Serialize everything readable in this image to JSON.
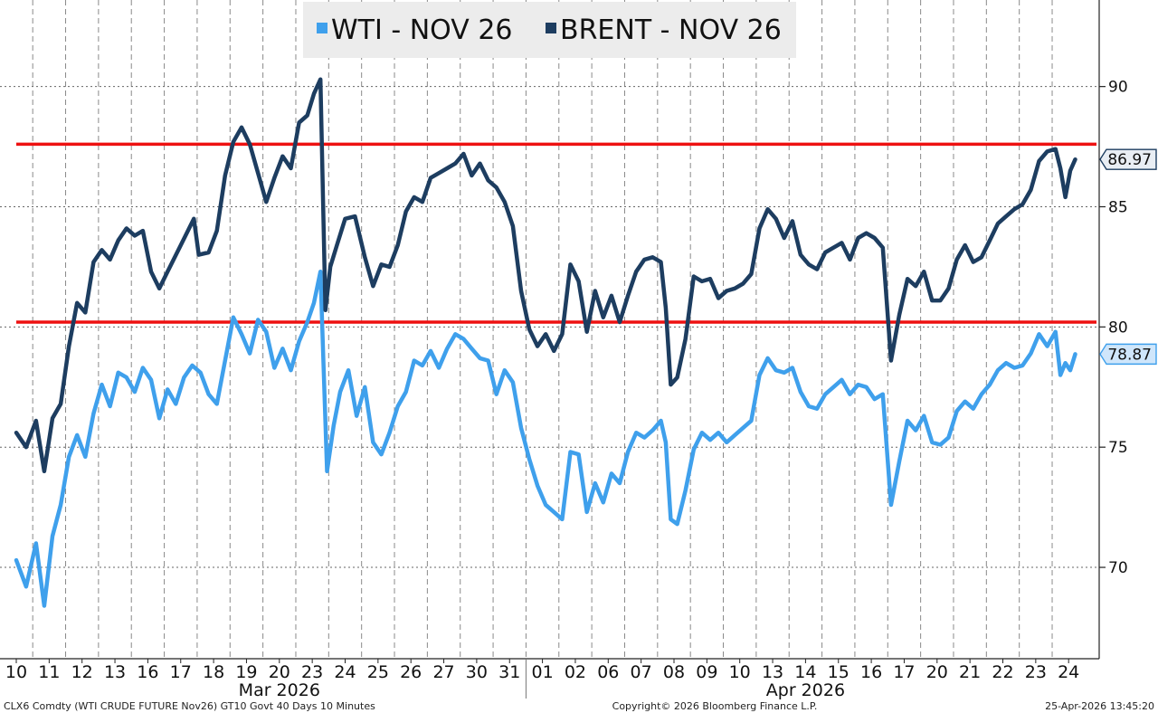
{
  "chart_data": {
    "type": "line",
    "title": "",
    "y_axis": {
      "position": "right",
      "ticks": [
        70,
        75,
        80,
        85,
        90
      ],
      "ylim": [
        66.2,
        93.6
      ]
    },
    "x_axis": {
      "day_labels": [
        "10",
        "11",
        "12",
        "13",
        "16",
        "17",
        "18",
        "19",
        "20",
        "23",
        "24",
        "25",
        "26",
        "27",
        "30",
        "31",
        "01",
        "02",
        "06",
        "07",
        "08",
        "09",
        "10",
        "13",
        "14",
        "15",
        "16",
        "17",
        "20",
        "21",
        "22",
        "23",
        "24"
      ],
      "month_labels": [
        {
          "label": "Mar 2026",
          "center_day_index": 8
        },
        {
          "label": "Apr 2026",
          "center_day_index": 24
        }
      ],
      "month_separator_after_index": 15
    },
    "legend": {
      "placement": "top-center",
      "items": [
        {
          "label": "WTI - NOV 26",
          "color": "#3fa0ec"
        },
        {
          "label": "BRENT - NOV 26",
          "color": "#1d3d60"
        }
      ]
    },
    "series": [
      {
        "name": "WTI - NOV 26",
        "color": "#3fa0ec",
        "last_value_label": "78.87",
        "points": [
          [
            0.0,
            70.3
          ],
          [
            0.3,
            69.2
          ],
          [
            0.6,
            71.0
          ],
          [
            0.85,
            68.4
          ],
          [
            1.1,
            71.3
          ],
          [
            1.35,
            72.6
          ],
          [
            1.6,
            74.6
          ],
          [
            1.85,
            75.5
          ],
          [
            2.1,
            74.6
          ],
          [
            2.35,
            76.4
          ],
          [
            2.6,
            77.6
          ],
          [
            2.85,
            76.7
          ],
          [
            3.1,
            78.1
          ],
          [
            3.35,
            77.9
          ],
          [
            3.6,
            77.3
          ],
          [
            3.85,
            78.3
          ],
          [
            4.1,
            77.8
          ],
          [
            4.35,
            76.2
          ],
          [
            4.6,
            77.4
          ],
          [
            4.85,
            76.8
          ],
          [
            5.1,
            77.9
          ],
          [
            5.35,
            78.4
          ],
          [
            5.6,
            78.1
          ],
          [
            5.85,
            77.2
          ],
          [
            6.1,
            76.8
          ],
          [
            6.35,
            78.6
          ],
          [
            6.6,
            80.4
          ],
          [
            6.85,
            79.7
          ],
          [
            7.1,
            78.9
          ],
          [
            7.35,
            80.3
          ],
          [
            7.6,
            79.8
          ],
          [
            7.85,
            78.3
          ],
          [
            8.1,
            79.1
          ],
          [
            8.35,
            78.2
          ],
          [
            8.6,
            79.4
          ],
          [
            8.85,
            80.2
          ],
          [
            9.05,
            81.0
          ],
          [
            9.25,
            82.3
          ],
          [
            9.45,
            74.0
          ],
          [
            9.65,
            75.9
          ],
          [
            9.85,
            77.3
          ],
          [
            10.1,
            78.2
          ],
          [
            10.35,
            76.3
          ],
          [
            10.6,
            77.5
          ],
          [
            10.85,
            75.2
          ],
          [
            11.1,
            74.7
          ],
          [
            11.35,
            75.6
          ],
          [
            11.6,
            76.7
          ],
          [
            11.85,
            77.3
          ],
          [
            12.1,
            78.6
          ],
          [
            12.35,
            78.4
          ],
          [
            12.6,
            79.0
          ],
          [
            12.85,
            78.3
          ],
          [
            13.1,
            79.1
          ],
          [
            13.35,
            79.7
          ],
          [
            13.6,
            79.5
          ],
          [
            13.85,
            79.1
          ],
          [
            14.1,
            78.7
          ],
          [
            14.35,
            78.6
          ],
          [
            14.6,
            77.2
          ],
          [
            14.85,
            78.2
          ],
          [
            15.1,
            77.7
          ],
          [
            15.35,
            75.8
          ],
          [
            15.6,
            74.5
          ],
          [
            15.85,
            73.4
          ],
          [
            16.1,
            72.6
          ],
          [
            16.35,
            72.3
          ],
          [
            16.6,
            72.0
          ],
          [
            16.85,
            74.8
          ],
          [
            17.1,
            74.7
          ],
          [
            17.35,
            72.3
          ],
          [
            17.6,
            73.5
          ],
          [
            17.85,
            72.7
          ],
          [
            18.1,
            73.9
          ],
          [
            18.35,
            73.5
          ],
          [
            18.6,
            74.8
          ],
          [
            18.85,
            75.6
          ],
          [
            19.1,
            75.4
          ],
          [
            19.35,
            75.7
          ],
          [
            19.6,
            76.1
          ],
          [
            19.75,
            75.2
          ],
          [
            19.9,
            72.0
          ],
          [
            20.1,
            71.8
          ],
          [
            20.35,
            73.2
          ],
          [
            20.6,
            74.9
          ],
          [
            20.85,
            75.6
          ],
          [
            21.1,
            75.3
          ],
          [
            21.35,
            75.6
          ],
          [
            21.6,
            75.2
          ],
          [
            21.85,
            75.5
          ],
          [
            22.1,
            75.8
          ],
          [
            22.35,
            76.1
          ],
          [
            22.6,
            78.0
          ],
          [
            22.85,
            78.7
          ],
          [
            23.1,
            78.2
          ],
          [
            23.35,
            78.1
          ],
          [
            23.6,
            78.3
          ],
          [
            23.85,
            77.3
          ],
          [
            24.1,
            76.7
          ],
          [
            24.35,
            76.6
          ],
          [
            24.6,
            77.2
          ],
          [
            24.85,
            77.5
          ],
          [
            25.1,
            77.8
          ],
          [
            25.35,
            77.2
          ],
          [
            25.6,
            77.6
          ],
          [
            25.85,
            77.5
          ],
          [
            26.1,
            77.0
          ],
          [
            26.35,
            77.2
          ],
          [
            26.6,
            72.6
          ],
          [
            26.85,
            74.4
          ],
          [
            27.1,
            76.1
          ],
          [
            27.35,
            75.7
          ],
          [
            27.6,
            76.3
          ],
          [
            27.85,
            75.2
          ],
          [
            28.1,
            75.1
          ],
          [
            28.35,
            75.4
          ],
          [
            28.6,
            76.5
          ],
          [
            28.85,
            76.9
          ],
          [
            29.1,
            76.6
          ],
          [
            29.35,
            77.2
          ],
          [
            29.6,
            77.6
          ],
          [
            29.85,
            78.2
          ],
          [
            30.1,
            78.5
          ],
          [
            30.35,
            78.3
          ],
          [
            30.6,
            78.4
          ],
          [
            30.85,
            78.9
          ],
          [
            31.1,
            79.7
          ],
          [
            31.35,
            79.2
          ],
          [
            31.6,
            79.8
          ],
          [
            31.75,
            78.0
          ],
          [
            31.9,
            78.5
          ],
          [
            32.05,
            78.2
          ],
          [
            32.2,
            78.87
          ]
        ]
      },
      {
        "name": "BRENT - NOV 26",
        "color": "#1d3d60",
        "last_value_label": "86.97",
        "points": [
          [
            0.0,
            75.6
          ],
          [
            0.3,
            75.0
          ],
          [
            0.6,
            76.1
          ],
          [
            0.85,
            74.0
          ],
          [
            1.1,
            76.2
          ],
          [
            1.35,
            76.8
          ],
          [
            1.6,
            79.2
          ],
          [
            1.85,
            81.0
          ],
          [
            2.1,
            80.6
          ],
          [
            2.35,
            82.7
          ],
          [
            2.6,
            83.2
          ],
          [
            2.85,
            82.8
          ],
          [
            3.1,
            83.6
          ],
          [
            3.35,
            84.1
          ],
          [
            3.6,
            83.8
          ],
          [
            3.85,
            84.0
          ],
          [
            4.1,
            82.3
          ],
          [
            4.35,
            81.6
          ],
          [
            4.6,
            82.3
          ],
          [
            5.0,
            83.4
          ],
          [
            5.4,
            84.5
          ],
          [
            5.55,
            83.0
          ],
          [
            5.85,
            83.1
          ],
          [
            6.1,
            84.0
          ],
          [
            6.35,
            86.3
          ],
          [
            6.6,
            87.7
          ],
          [
            6.85,
            88.3
          ],
          [
            7.1,
            87.6
          ],
          [
            7.35,
            86.4
          ],
          [
            7.6,
            85.2
          ],
          [
            7.85,
            86.2
          ],
          [
            8.1,
            87.1
          ],
          [
            8.35,
            86.6
          ],
          [
            8.6,
            88.5
          ],
          [
            8.85,
            88.8
          ],
          [
            9.05,
            89.7
          ],
          [
            9.25,
            90.3
          ],
          [
            9.4,
            80.7
          ],
          [
            9.55,
            82.5
          ],
          [
            9.75,
            83.4
          ],
          [
            10.0,
            84.5
          ],
          [
            10.3,
            84.6
          ],
          [
            10.6,
            82.9
          ],
          [
            10.85,
            81.7
          ],
          [
            11.1,
            82.6
          ],
          [
            11.35,
            82.5
          ],
          [
            11.6,
            83.4
          ],
          [
            11.85,
            84.8
          ],
          [
            12.1,
            85.4
          ],
          [
            12.35,
            85.2
          ],
          [
            12.6,
            86.2
          ],
          [
            12.85,
            86.4
          ],
          [
            13.1,
            86.6
          ],
          [
            13.35,
            86.8
          ],
          [
            13.6,
            87.2
          ],
          [
            13.85,
            86.3
          ],
          [
            14.1,
            86.8
          ],
          [
            14.35,
            86.1
          ],
          [
            14.6,
            85.8
          ],
          [
            14.85,
            85.2
          ],
          [
            15.1,
            84.2
          ],
          [
            15.35,
            81.5
          ],
          [
            15.6,
            79.9
          ],
          [
            15.85,
            79.2
          ],
          [
            16.1,
            79.7
          ],
          [
            16.35,
            79.0
          ],
          [
            16.6,
            79.7
          ],
          [
            16.85,
            82.6
          ],
          [
            17.1,
            81.9
          ],
          [
            17.35,
            79.8
          ],
          [
            17.6,
            81.5
          ],
          [
            17.85,
            80.4
          ],
          [
            18.1,
            81.3
          ],
          [
            18.35,
            80.2
          ],
          [
            18.6,
            81.3
          ],
          [
            18.85,
            82.3
          ],
          [
            19.1,
            82.8
          ],
          [
            19.35,
            82.9
          ],
          [
            19.6,
            82.7
          ],
          [
            19.75,
            80.8
          ],
          [
            19.9,
            77.6
          ],
          [
            20.1,
            77.9
          ],
          [
            20.35,
            79.5
          ],
          [
            20.6,
            82.1
          ],
          [
            20.85,
            81.9
          ],
          [
            21.1,
            82.0
          ],
          [
            21.35,
            81.2
          ],
          [
            21.6,
            81.5
          ],
          [
            21.85,
            81.6
          ],
          [
            22.1,
            81.8
          ],
          [
            22.35,
            82.2
          ],
          [
            22.6,
            84.1
          ],
          [
            22.85,
            84.9
          ],
          [
            23.1,
            84.5
          ],
          [
            23.35,
            83.7
          ],
          [
            23.6,
            84.4
          ],
          [
            23.85,
            83.0
          ],
          [
            24.1,
            82.6
          ],
          [
            24.35,
            82.4
          ],
          [
            24.6,
            83.1
          ],
          [
            24.85,
            83.3
          ],
          [
            25.1,
            83.5
          ],
          [
            25.35,
            82.8
          ],
          [
            25.6,
            83.7
          ],
          [
            25.85,
            83.9
          ],
          [
            26.1,
            83.7
          ],
          [
            26.35,
            83.3
          ],
          [
            26.6,
            78.6
          ],
          [
            26.85,
            80.5
          ],
          [
            27.1,
            82.0
          ],
          [
            27.35,
            81.7
          ],
          [
            27.6,
            82.3
          ],
          [
            27.85,
            81.1
          ],
          [
            28.1,
            81.1
          ],
          [
            28.35,
            81.6
          ],
          [
            28.6,
            82.8
          ],
          [
            28.85,
            83.4
          ],
          [
            29.1,
            82.7
          ],
          [
            29.35,
            82.9
          ],
          [
            29.6,
            83.6
          ],
          [
            29.85,
            84.3
          ],
          [
            30.1,
            84.6
          ],
          [
            30.35,
            84.9
          ],
          [
            30.6,
            85.1
          ],
          [
            30.85,
            85.7
          ],
          [
            31.1,
            86.9
          ],
          [
            31.35,
            87.3
          ],
          [
            31.6,
            87.4
          ],
          [
            31.75,
            86.6
          ],
          [
            31.9,
            85.4
          ],
          [
            32.05,
            86.5
          ],
          [
            32.2,
            86.97
          ]
        ]
      }
    ],
    "horizontal_lines": [
      {
        "value": 87.6,
        "color": "#ee1111"
      },
      {
        "value": 80.2,
        "color": "#ee1111"
      }
    ],
    "grid": true
  },
  "footer": {
    "left": "CLX6 Comdty (WTI CRUDE FUTURE  Nov26) GT10  Govt 40 Days 10 Minutes",
    "center": "Copyright© 2026 Bloomberg Finance L.P.",
    "right": "25-Apr-2026 13:45:20"
  }
}
